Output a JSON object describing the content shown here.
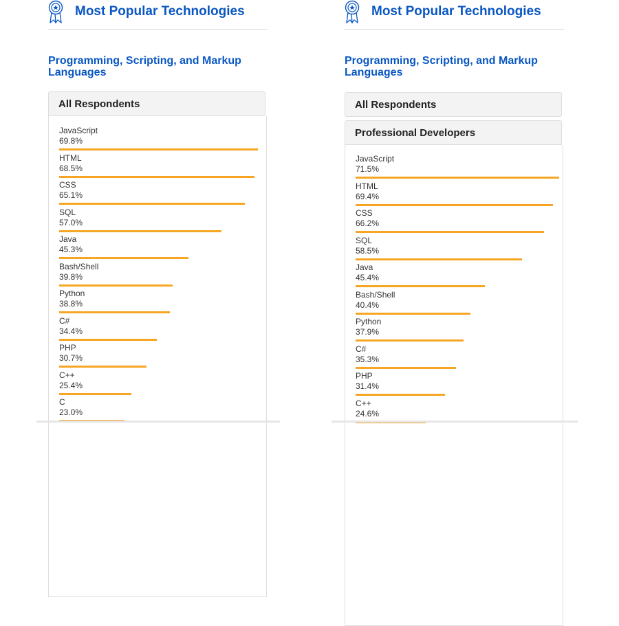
{
  "colors": {
    "accent": "#0a57c2",
    "bar": "#f6a623",
    "tab_bg": "#f3f3f3",
    "border": "#dedede"
  },
  "icons": {
    "award": "award-ribbon-icon"
  },
  "left": {
    "header": {
      "title": "Most Popular Technologies"
    },
    "section_title": "Programming, Scripting, and Markup Languages",
    "tab": {
      "label": "All Respondents"
    }
  },
  "right": {
    "header": {
      "title": "Most Popular Technologies"
    },
    "section_title": "Programming, Scripting, and Markup Languages",
    "tab_collapsed": {
      "label": "All Respondents"
    },
    "tab": {
      "label": "Professional Developers"
    }
  },
  "chart_data": [
    {
      "type": "bar",
      "orientation": "horizontal",
      "title": "All Respondents",
      "xlim": [
        0,
        100
      ],
      "categories": [
        "JavaScript",
        "HTML",
        "CSS",
        "SQL",
        "Java",
        "Bash/Shell",
        "Python",
        "C#",
        "PHP",
        "C++",
        "C"
      ],
      "labels": [
        "69.8%",
        "68.5%",
        "65.1%",
        "57.0%",
        "45.3%",
        "39.8%",
        "38.8%",
        "34.4%",
        "30.7%",
        "25.4%",
        "23.0%"
      ],
      "values": [
        69.8,
        68.5,
        65.1,
        57.0,
        45.3,
        39.8,
        38.8,
        34.4,
        30.7,
        25.4,
        23.0
      ]
    },
    {
      "type": "bar",
      "orientation": "horizontal",
      "title": "Professional Developers",
      "xlim": [
        0,
        100
      ],
      "categories": [
        "JavaScript",
        "HTML",
        "CSS",
        "SQL",
        "Java",
        "Bash/Shell",
        "Python",
        "C#",
        "PHP",
        "C++"
      ],
      "labels": [
        "71.5%",
        "69.4%",
        "66.2%",
        "58.5%",
        "45.4%",
        "40.4%",
        "37.9%",
        "35.3%",
        "31.4%",
        "24.6%"
      ],
      "values": [
        71.5,
        69.4,
        66.2,
        58.5,
        45.4,
        40.4,
        37.9,
        35.3,
        31.4,
        24.6
      ]
    }
  ]
}
